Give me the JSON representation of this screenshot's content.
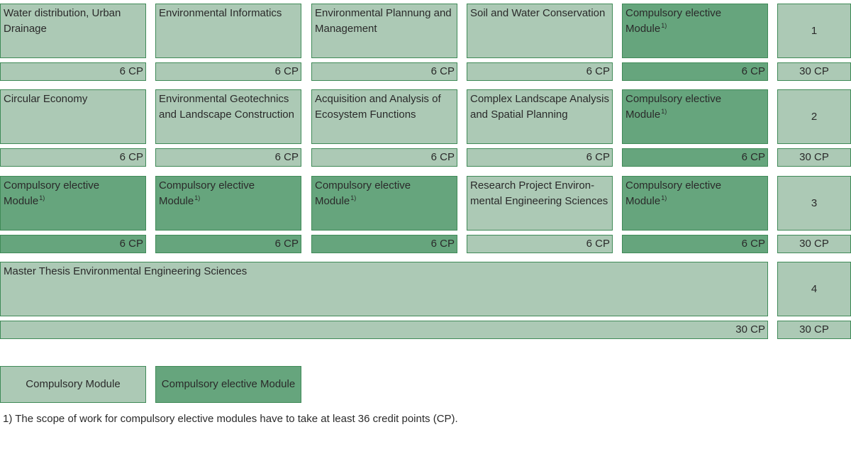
{
  "colors": {
    "compulsory": "#acc9b5",
    "elective": "#66a57d",
    "border": "#3f8a57"
  },
  "semesters": [
    {
      "number": "1",
      "total_cp": "30 CP",
      "modules": [
        {
          "name": "Water distribution, Urban Drainage",
          "cp": "6 CP",
          "kind": "compulsory"
        },
        {
          "name": "Environmental Informatics",
          "cp": "6 CP",
          "kind": "compulsory"
        },
        {
          "name": "Environmental Plannung and Management",
          "cp": "6 CP",
          "kind": "compulsory"
        },
        {
          "name": "Soil and Water Conservation",
          "cp": "6 CP",
          "kind": "compulsory"
        },
        {
          "name": "Compulsory elective Module",
          "note": "1)",
          "cp": "6 CP",
          "kind": "elective"
        }
      ]
    },
    {
      "number": "2",
      "total_cp": "30 CP",
      "modules": [
        {
          "name": "Circular Economy",
          "cp": "6 CP",
          "kind": "compulsory"
        },
        {
          "name": "Environmental Geotechnics and Landscape Construction",
          "cp": "6 CP",
          "kind": "compulsory"
        },
        {
          "name": "Acquisition and Analysis of Ecosystem Functions",
          "cp": "6 CP",
          "kind": "compulsory"
        },
        {
          "name": "Complex Landscape Analysis and Spatial Planning",
          "cp": "6 CP",
          "kind": "compulsory"
        },
        {
          "name": "Compulsory elective Module",
          "note": "1)",
          "cp": "6 CP",
          "kind": "elective"
        }
      ]
    },
    {
      "number": "3",
      "total_cp": "30 CP",
      "modules": [
        {
          "name": "Compulsory elective Module",
          "note": "1)",
          "cp": "6 CP",
          "kind": "elective"
        },
        {
          "name": "Compulsory elective Module",
          "note": "1)",
          "cp": "6 CP",
          "kind": "elective"
        },
        {
          "name": "Compulsory elective Module",
          "note": "1)",
          "cp": "6 CP",
          "kind": "elective"
        },
        {
          "name": "Research Project Environ-mental Engineering Sciences",
          "cp": "6 CP",
          "kind": "compulsory"
        },
        {
          "name": "Compulsory elective Module",
          "note": "1)",
          "cp": "6 CP",
          "kind": "elective"
        }
      ]
    },
    {
      "number": "4",
      "total_cp": "30 CP",
      "modules": [
        {
          "name": "Master Thesis Environmental Engineering Sciences",
          "cp": "30 CP",
          "kind": "compulsory"
        }
      ]
    }
  ],
  "legend": {
    "compulsory": "Compulsory Module",
    "elective": "Compulsory elective Module"
  },
  "footnote": "1) The scope of work for compulsory elective modules have to take at least 36 credit points (CP)."
}
